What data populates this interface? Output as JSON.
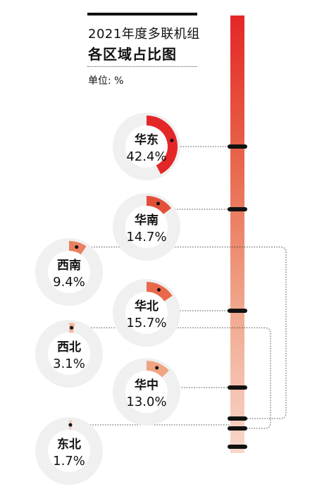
{
  "header": {
    "title": "2021年度多联机组",
    "subtitle": "各区域占比图",
    "unit": "单位: %"
  },
  "chart_data": {
    "type": "pie",
    "title": "2021年度多联机组",
    "subtitle": "各区域占比图",
    "unit_label": "单位: %",
    "categories": [
      "华东",
      "华南",
      "西南",
      "华北",
      "西北",
      "华中",
      "东北"
    ],
    "values": [
      42.4,
      14.7,
      9.4,
      15.7,
      3.1,
      13.0,
      1.7
    ],
    "value_labels": [
      "42.4%",
      "14.7%",
      "9.4%",
      "15.7%",
      "3.1%",
      "13.0%",
      "1.7%"
    ],
    "colors": [
      "#e32726",
      "#e2503a",
      "#e9805f",
      "#e9684a",
      "#f4b7a2",
      "#efa582",
      "#f6cfc0"
    ],
    "track_color": "#eeeeee",
    "bar_gradient": [
      "#e32726",
      "#e8664c",
      "#f0a78c",
      "#f8d7cb"
    ],
    "ring_color": "#f0f0f0"
  }
}
